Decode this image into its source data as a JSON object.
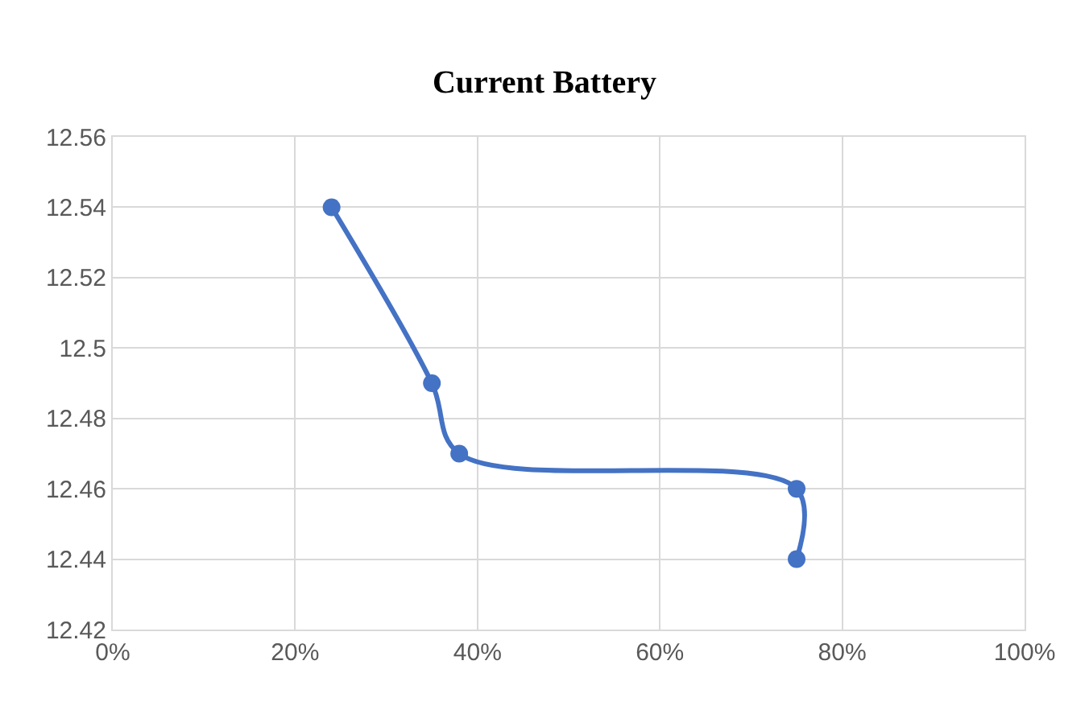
{
  "chart_data": {
    "type": "line",
    "title": "Current Battery",
    "x": [
      24,
      35,
      38,
      75,
      75
    ],
    "series": [
      {
        "color": "#4472c4",
        "values": [
          12.54,
          12.49,
          12.47,
          12.46,
          12.44
        ]
      }
    ],
    "xlim": [
      0,
      100
    ],
    "xticks": [
      {
        "value": 0,
        "label": "0%"
      },
      {
        "value": 20,
        "label": "20%"
      },
      {
        "value": 40,
        "label": "40%"
      },
      {
        "value": 60,
        "label": "60%"
      },
      {
        "value": 80,
        "label": "80%"
      },
      {
        "value": 100,
        "label": "100%"
      }
    ],
    "ylim": [
      12.42,
      12.56
    ],
    "yticks": [
      12.42,
      12.44,
      12.46,
      12.48,
      12.5,
      12.52,
      12.54,
      12.56
    ],
    "grid": true,
    "marker": "circle",
    "line_style": "solid",
    "legend": false
  }
}
